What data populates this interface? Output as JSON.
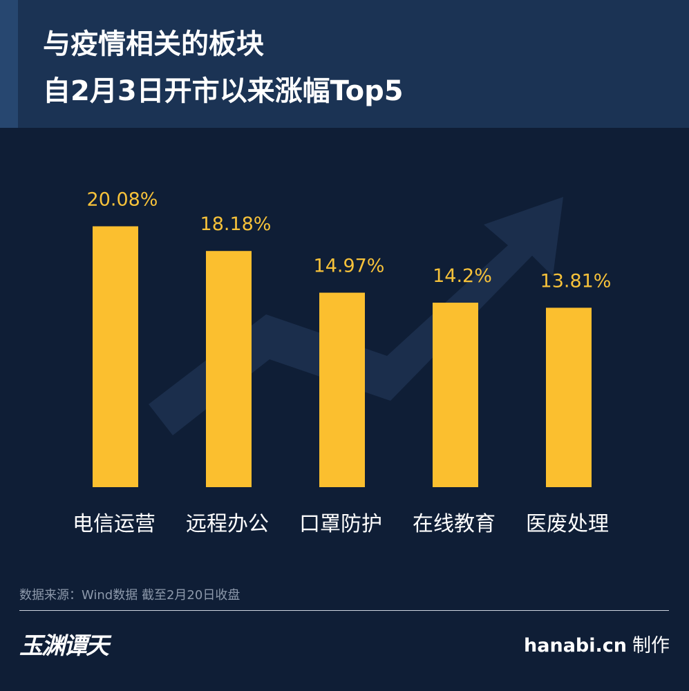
{
  "title": {
    "line1": "与疫情相关的板块",
    "line2": "自2月3日开市以来涨幅Top5"
  },
  "chart_data": {
    "type": "bar",
    "categories": [
      "电信运营",
      "远程办公",
      "口罩防护",
      "在线教育",
      "医废处理"
    ],
    "values": [
      20.08,
      18.18,
      14.97,
      14.2,
      13.81
    ],
    "value_labels": [
      "20.08%",
      "18.18%",
      "14.97%",
      "14.2%",
      "13.81%"
    ],
    "title": "与疫情相关的板块 自2月3日开市以来涨幅Top5",
    "xlabel": "",
    "ylabel": "",
    "ylim": [
      0,
      24
    ],
    "grid": false,
    "bar_color": "#fbbf2f",
    "label_color": "#f7c23a"
  },
  "footer": {
    "source": "数据来源：Wind数据 截至2月20日收盘",
    "logo_text": "玉渊谭天",
    "site": "hanabi.cn",
    "made_by": "制作"
  },
  "colors": {
    "background": "#0f1e36",
    "header": "#1b3354",
    "bar": "#fbbf2f",
    "arrow": "#1b2e4c"
  }
}
